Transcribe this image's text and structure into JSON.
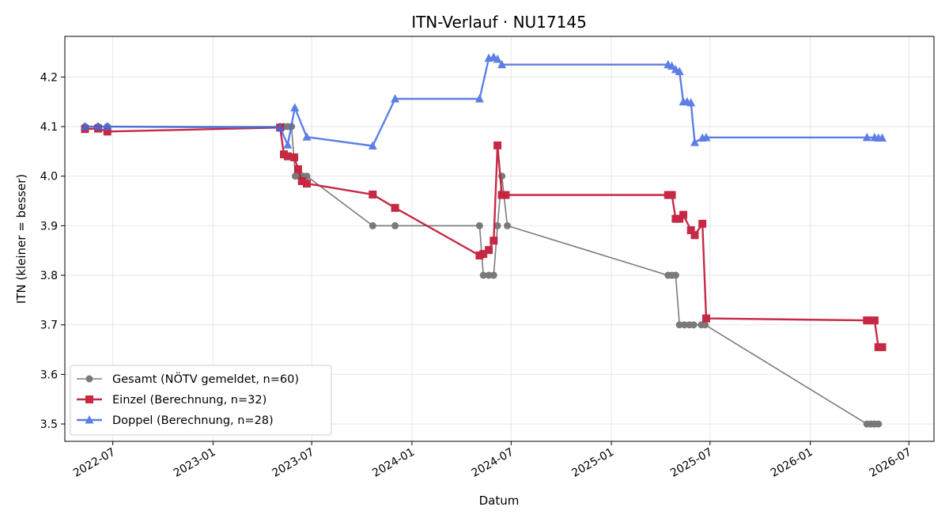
{
  "chart_data": {
    "type": "line",
    "title": "ITN-Verlauf · NU17145",
    "xlabel": "Datum",
    "ylabel": "ITN  (kleiner = besser)",
    "xlim": [
      "2022-04-04",
      "2026-08-16"
    ],
    "ylim": [
      3.465,
      4.282
    ],
    "x_ticks": [
      {
        "date": "2022-07-01",
        "label": "2022-07"
      },
      {
        "date": "2023-01-01",
        "label": "2023-01"
      },
      {
        "date": "2023-07-01",
        "label": "2023-07"
      },
      {
        "date": "2024-01-01",
        "label": "2024-01"
      },
      {
        "date": "2024-07-01",
        "label": "2024-07"
      },
      {
        "date": "2025-01-01",
        "label": "2025-01"
      },
      {
        "date": "2025-07-01",
        "label": "2025-07"
      },
      {
        "date": "2026-01-01",
        "label": "2026-01"
      },
      {
        "date": "2026-07-01",
        "label": "2026-07"
      }
    ],
    "y_ticks": [
      3.5,
      3.6,
      3.7,
      3.8,
      3.9,
      4.0,
      4.1,
      4.2
    ],
    "grid": true,
    "legend_position": "lower-left",
    "series": [
      {
        "name": "Gesamt (NÖTV gemeldet, n=60)",
        "color": "#444444",
        "marker": "circle",
        "points": [
          {
            "x": "2022-05-11",
            "y": 4.1
          },
          {
            "x": "2022-06-04",
            "y": 4.1
          },
          {
            "x": "2022-06-21",
            "y": 4.1
          },
          {
            "x": "2023-05-04",
            "y": 4.1
          },
          {
            "x": "2023-05-11",
            "y": 4.1
          },
          {
            "x": "2023-05-18",
            "y": 4.1
          },
          {
            "x": "2023-05-25",
            "y": 4.1
          },
          {
            "x": "2023-06-01",
            "y": 4.0
          },
          {
            "x": "2023-06-08",
            "y": 4.0
          },
          {
            "x": "2023-06-15",
            "y": 4.0
          },
          {
            "x": "2023-06-22",
            "y": 4.0
          },
          {
            "x": "2023-10-21",
            "y": 3.9
          },
          {
            "x": "2023-12-01",
            "y": 3.9
          },
          {
            "x": "2024-05-04",
            "y": 3.9
          },
          {
            "x": "2024-05-11",
            "y": 3.8
          },
          {
            "x": "2024-05-21",
            "y": 3.8
          },
          {
            "x": "2024-05-30",
            "y": 3.8
          },
          {
            "x": "2024-06-06",
            "y": 3.9
          },
          {
            "x": "2024-06-14",
            "y": 4.0
          },
          {
            "x": "2024-06-24",
            "y": 3.9
          },
          {
            "x": "2025-04-15",
            "y": 3.8
          },
          {
            "x": "2025-04-22",
            "y": 3.8
          },
          {
            "x": "2025-04-29",
            "y": 3.8
          },
          {
            "x": "2025-05-06",
            "y": 3.7
          },
          {
            "x": "2025-05-15",
            "y": 3.7
          },
          {
            "x": "2025-05-24",
            "y": 3.7
          },
          {
            "x": "2025-06-01",
            "y": 3.7
          },
          {
            "x": "2025-06-15",
            "y": 3.7
          },
          {
            "x": "2025-06-22",
            "y": 3.7
          },
          {
            "x": "2026-04-15",
            "y": 3.5
          },
          {
            "x": "2026-04-22",
            "y": 3.5
          },
          {
            "x": "2026-04-29",
            "y": 3.5
          },
          {
            "x": "2026-05-06",
            "y": 3.5
          }
        ]
      },
      {
        "name": "Einzel (Berechnung, n=32)",
        "color": "#c41e3a",
        "marker": "square",
        "points": [
          {
            "x": "2022-05-11",
            "y": 4.095
          },
          {
            "x": "2022-06-04",
            "y": 4.096
          },
          {
            "x": "2022-06-21",
            "y": 4.09
          },
          {
            "x": "2023-05-04",
            "y": 4.098
          },
          {
            "x": "2023-05-11",
            "y": 4.044
          },
          {
            "x": "2023-05-18",
            "y": 4.04
          },
          {
            "x": "2023-05-30",
            "y": 4.038
          },
          {
            "x": "2023-06-06",
            "y": 4.014
          },
          {
            "x": "2023-06-13",
            "y": 3.99
          },
          {
            "x": "2023-06-22",
            "y": 3.985
          },
          {
            "x": "2023-10-21",
            "y": 3.963
          },
          {
            "x": "2023-12-01",
            "y": 3.936
          },
          {
            "x": "2024-05-04",
            "y": 3.84
          },
          {
            "x": "2024-05-11",
            "y": 3.843
          },
          {
            "x": "2024-05-21",
            "y": 3.851
          },
          {
            "x": "2024-05-30",
            "y": 3.87
          },
          {
            "x": "2024-06-06",
            "y": 4.062
          },
          {
            "x": "2024-06-14",
            "y": 3.962
          },
          {
            "x": "2024-06-21",
            "y": 3.962
          },
          {
            "x": "2025-04-15",
            "y": 3.962
          },
          {
            "x": "2025-04-22",
            "y": 3.962
          },
          {
            "x": "2025-04-29",
            "y": 3.914
          },
          {
            "x": "2025-05-06",
            "y": 3.914
          },
          {
            "x": "2025-05-13",
            "y": 3.922
          },
          {
            "x": "2025-05-27",
            "y": 3.891
          },
          {
            "x": "2025-06-03",
            "y": 3.881
          },
          {
            "x": "2025-06-17",
            "y": 3.904
          },
          {
            "x": "2025-06-24",
            "y": 3.713
          },
          {
            "x": "2026-04-15",
            "y": 3.709
          },
          {
            "x": "2026-04-29",
            "y": 3.709
          },
          {
            "x": "2026-05-06",
            "y": 3.655
          },
          {
            "x": "2026-05-13",
            "y": 3.655
          }
        ]
      },
      {
        "name": "Doppel (Berechnung, n=28)",
        "color": "#4169e1",
        "marker": "triangle",
        "points": [
          {
            "x": "2022-05-11",
            "y": 4.1
          },
          {
            "x": "2022-06-04",
            "y": 4.1
          },
          {
            "x": "2022-06-21",
            "y": 4.1
          },
          {
            "x": "2023-05-04",
            "y": 4.098
          },
          {
            "x": "2023-05-18",
            "y": 4.063
          },
          {
            "x": "2023-05-31",
            "y": 4.138
          },
          {
            "x": "2023-06-22",
            "y": 4.079
          },
          {
            "x": "2023-10-21",
            "y": 4.061
          },
          {
            "x": "2023-12-01",
            "y": 4.156
          },
          {
            "x": "2024-05-04",
            "y": 4.156
          },
          {
            "x": "2024-05-21",
            "y": 4.238
          },
          {
            "x": "2024-05-30",
            "y": 4.24
          },
          {
            "x": "2024-06-06",
            "y": 4.236
          },
          {
            "x": "2024-06-14",
            "y": 4.225
          },
          {
            "x": "2025-04-15",
            "y": 4.225
          },
          {
            "x": "2025-04-22",
            "y": 4.222
          },
          {
            "x": "2025-04-29",
            "y": 4.215
          },
          {
            "x": "2025-05-06",
            "y": 4.211
          },
          {
            "x": "2025-05-13",
            "y": 4.15
          },
          {
            "x": "2025-05-20",
            "y": 4.15
          },
          {
            "x": "2025-05-27",
            "y": 4.148
          },
          {
            "x": "2025-06-03",
            "y": 4.068
          },
          {
            "x": "2025-06-17",
            "y": 4.077
          },
          {
            "x": "2025-06-24",
            "y": 4.078
          },
          {
            "x": "2026-04-15",
            "y": 4.078
          },
          {
            "x": "2026-04-29",
            "y": 4.078
          },
          {
            "x": "2026-05-06",
            "y": 4.077
          },
          {
            "x": "2026-05-13",
            "y": 4.077
          }
        ]
      }
    ]
  }
}
